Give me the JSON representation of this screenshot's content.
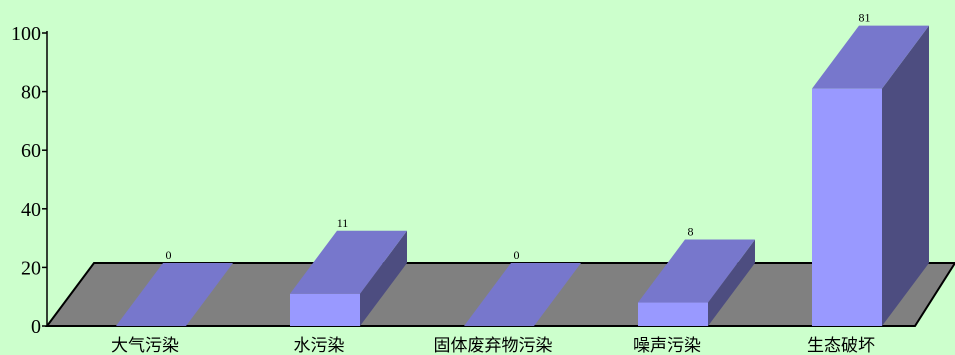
{
  "chart_data": {
    "type": "bar",
    "style": "3d",
    "categories": [
      "大气污染",
      "水污染",
      "固体废弃物污染",
      "噪声污染",
      "生态破坏"
    ],
    "values": [
      0,
      11,
      0,
      8,
      81
    ],
    "data_labels": [
      "0",
      "11",
      "0",
      "8",
      "81"
    ],
    "ylim": [
      0,
      100
    ],
    "yticks": [
      0,
      20,
      40,
      60,
      80,
      100
    ],
    "ytick_labels": [
      "0",
      "20",
      "40",
      "60",
      "80",
      "100"
    ],
    "grid": false,
    "legend": "none",
    "colors": {
      "background": "#ccffcc",
      "floor": "#808080",
      "bar_front": "#9999ff",
      "bar_top": "#7777cc",
      "bar_side": "#4d4d80",
      "axis": "#000000"
    }
  }
}
